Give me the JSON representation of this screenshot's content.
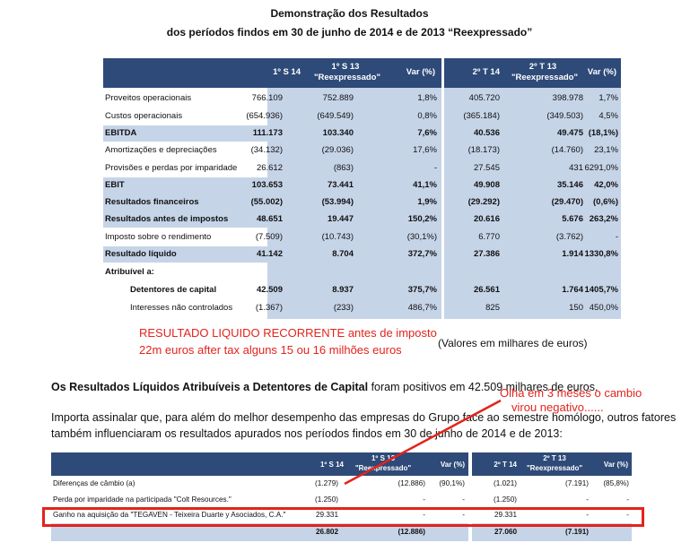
{
  "title1": "Demonstração dos Resultados",
  "title2": "dos períodos findos em 30 de junho de 2014 e de 2013 “Reexpressado”",
  "table1": {
    "headers": [
      "1º S 14",
      "1º S 13",
      "\"Reexpressado\"",
      "Var (%)",
      "2º T 14",
      "2º T 13",
      "\"Reexpressado\"",
      "Var (%)"
    ],
    "rows": [
      {
        "label": "Proveitos operacionais",
        "v": [
          "766.109",
          "752.889",
          "1,8%",
          "405.720",
          "398.978",
          "1,7%"
        ]
      },
      {
        "label": "Custos operacionais",
        "v": [
          "(654.936)",
          "(649.549)",
          "0,8%",
          "(365.184)",
          "(349.503)",
          "4,5%"
        ]
      },
      {
        "label": "EBITDA",
        "v": [
          "111.173",
          "103.340",
          "7,6%",
          "40.536",
          "49.475",
          "(18,1%)"
        ]
      },
      {
        "label": "Amortizações e depreciações",
        "v": [
          "(34.132)",
          "(29.036)",
          "17,6%",
          "(18.173)",
          "(14.760)",
          "23,1%"
        ]
      },
      {
        "label": "Provisões e perdas por imparidade",
        "v": [
          "26.612",
          "(863)",
          "-",
          "27.545",
          "431",
          "6291,0%"
        ]
      },
      {
        "label": "EBIT",
        "v": [
          "103.653",
          "73.441",
          "41,1%",
          "49.908",
          "35.146",
          "42,0%"
        ]
      },
      {
        "label": "Resultados financeiros",
        "v": [
          "(55.002)",
          "(53.994)",
          "1,9%",
          "(29.292)",
          "(29.470)",
          "(0,6%)"
        ]
      },
      {
        "label": "Resultados antes de impostos",
        "v": [
          "48.651",
          "19.447",
          "150,2%",
          "20.616",
          "5.676",
          "263,2%"
        ]
      },
      {
        "label": "Imposto sobre o rendimento",
        "v": [
          "(7.509)",
          "(10.743)",
          "(30,1%)",
          "6.770",
          "(3.762)",
          "-"
        ]
      },
      {
        "label": "Resultado líquido",
        "v": [
          "41.142",
          "8.704",
          "372,7%",
          "27.386",
          "1.914",
          "1330,8%"
        ]
      },
      {
        "label": "Atribuível a:",
        "v": [
          "",
          "",
          "",
          "",
          "",
          ""
        ]
      },
      {
        "label": "Detentores de capital",
        "v": [
          "42.509",
          "8.937",
          "375,7%",
          "26.561",
          "1.764",
          "1405,7%"
        ]
      },
      {
        "label": "Interesses não controlados",
        "v": [
          "(1.367)",
          "(233)",
          "486,7%",
          "825",
          "150",
          "450,0%"
        ]
      }
    ]
  },
  "annot1_line1": "RESULTADO LIQUIDO RECORRENTE antes de imposto",
  "annot1_line2": "22m euros after tax alguns 15 ou 16 milhões euros",
  "units_note": "(Valores em milhares de euros)",
  "para1_bold": "Os Resultados Líquidos Atribuíveis a Detentores de Capital",
  "para1_rest": " foram positivos em 42.509 milhares de euros.",
  "annot2_line1": "Olha em 3 meses o cambio",
  "annot2_line2": "virou negativo......",
  "para2_line1": "Importa assinalar que, para além do melhor desempenho das empresas do Grupo face ao semestre homólogo, outros fatores",
  "para2_line2": "também influenciaram os resultados apurados nos períodos findos em 30 de junho de 2014 e de 2013:",
  "table2": {
    "headers": [
      "1º S 14",
      "1º S 13",
      "\"Reexpressado\"",
      "Var (%)",
      "2º T 14",
      "2º T 13",
      "\"Reexpressado\"",
      "Var (%)"
    ],
    "rows": [
      {
        "label": "Diferenças de câmbio (a)",
        "v": [
          "(1.279)",
          "(12.886)",
          "(90,1%)",
          "(1.021)",
          "(7.191)",
          "(85,8%)"
        ]
      },
      {
        "label": "Perda por imparidade na  participada \"Colt Resources.\"",
        "v": [
          "(1.250)",
          "-",
          "-",
          "(1.250)",
          "-",
          "-"
        ]
      },
      {
        "label": "Ganho na aquisição da \"TEGAVEN - Teixeira Duarte y Asociados, C.A.\"",
        "v": [
          "29.331",
          "-",
          "-",
          "29.331",
          "-",
          "-"
        ]
      },
      {
        "label": "",
        "v": [
          "26.802",
          "(12.886)",
          "",
          "27.060",
          "(7.191)",
          ""
        ]
      }
    ]
  }
}
